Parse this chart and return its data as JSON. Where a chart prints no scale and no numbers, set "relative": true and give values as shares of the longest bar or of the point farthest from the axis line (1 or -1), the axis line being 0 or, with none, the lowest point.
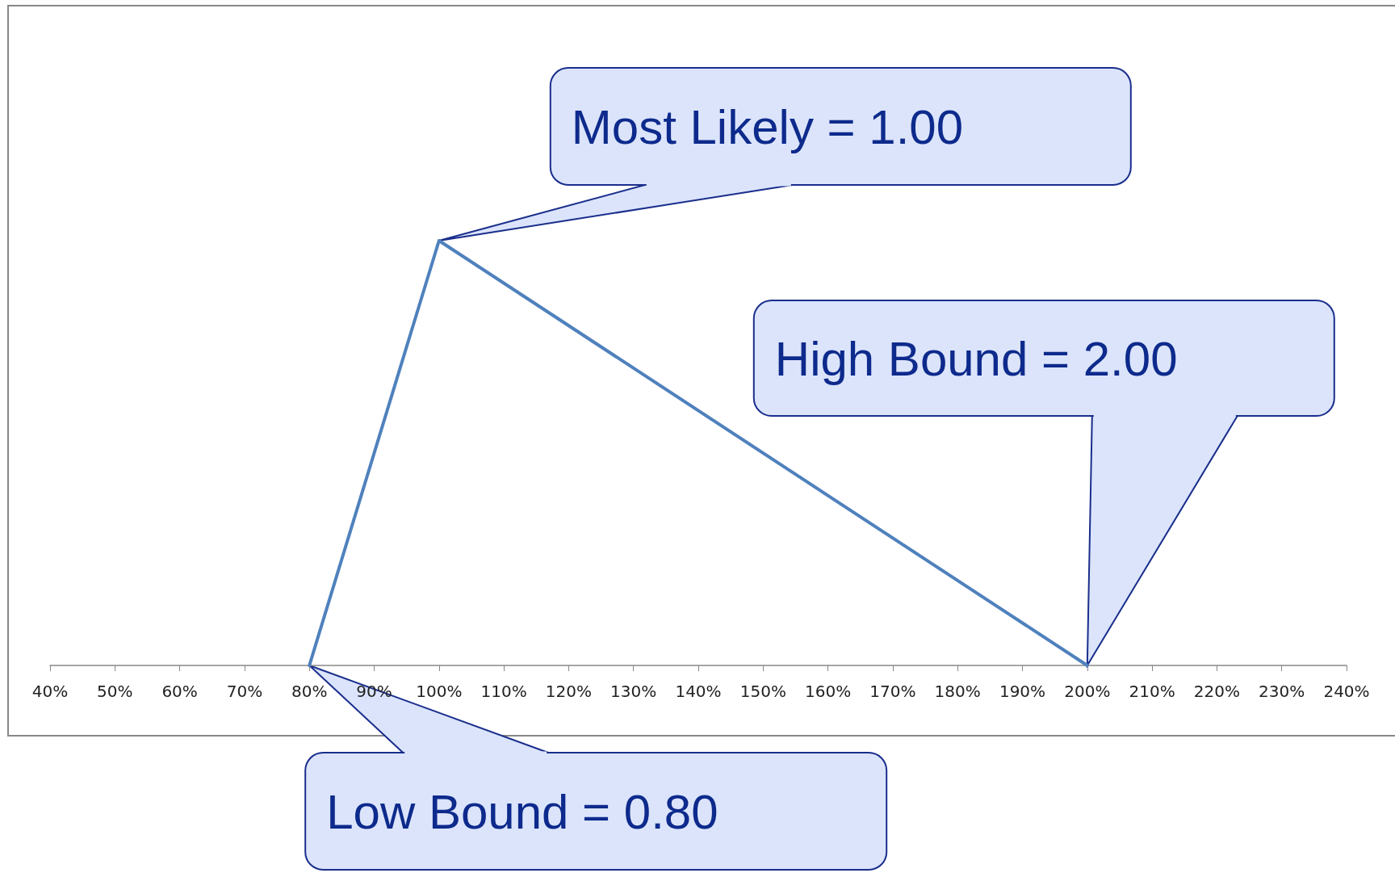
{
  "chart_data": {
    "type": "line",
    "relative": true,
    "grid": false,
    "marker": "none",
    "line_style": "solid",
    "x": [
      80,
      100,
      200
    ],
    "series": [
      {
        "color": "#4f81bd",
        "values": [
          0,
          1,
          0
        ]
      }
    ],
    "xlim": [
      40,
      240
    ],
    "xticks": [
      {
        "value": 40,
        "label": "40%"
      },
      {
        "value": 50,
        "label": "50%"
      },
      {
        "value": 60,
        "label": "60%"
      },
      {
        "value": 70,
        "label": "70%"
      },
      {
        "value": 80,
        "label": "80%"
      },
      {
        "value": 90,
        "label": "90%"
      },
      {
        "value": 100,
        "label": "100%"
      },
      {
        "value": 110,
        "label": "110%"
      },
      {
        "value": 120,
        "label": "120%"
      },
      {
        "value": 130,
        "label": "130%"
      },
      {
        "value": 140,
        "label": "140%"
      },
      {
        "value": 150,
        "label": "150%"
      },
      {
        "value": 160,
        "label": "160%"
      },
      {
        "value": 170,
        "label": "170%"
      },
      {
        "value": 180,
        "label": "180%"
      },
      {
        "value": 190,
        "label": "190%"
      },
      {
        "value": 200,
        "label": "200%"
      },
      {
        "value": 210,
        "label": "210%"
      },
      {
        "value": 220,
        "label": "220%"
      },
      {
        "value": 230,
        "label": "230%"
      },
      {
        "value": 240,
        "label": "240%"
      }
    ],
    "annotations": [
      {
        "text": "Most Likely = 1.00",
        "x": 100,
        "y": 1
      },
      "High Bound = 2.00",
      {
        "text": "Low Bound = 0.80",
        "x": 80,
        "y": 0
      }
    ]
  }
}
